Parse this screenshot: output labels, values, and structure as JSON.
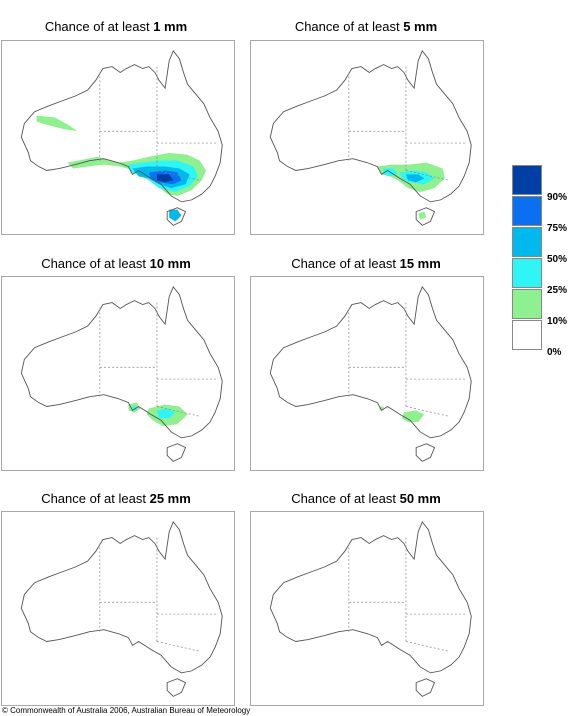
{
  "panels": [
    {
      "prefix": "Chance of at least ",
      "amount": "1 mm",
      "level": "1mm"
    },
    {
      "prefix": "Chance of at least ",
      "amount": "5 mm",
      "level": "5mm"
    },
    {
      "prefix": "Chance of at least ",
      "amount": "10 mm",
      "level": "10mm"
    },
    {
      "prefix": "Chance of at least ",
      "amount": "15 mm",
      "level": "15mm"
    },
    {
      "prefix": "Chance of at least ",
      "amount": "25 mm",
      "level": "25mm"
    },
    {
      "prefix": "Chance of at least ",
      "amount": "50 mm",
      "level": "50mm"
    }
  ],
  "legend": {
    "labels": [
      "90%",
      "75%",
      "50%",
      "25%",
      "10%",
      "0%"
    ],
    "colors": [
      "#003fa3",
      "#0a6ff0",
      "#00b9ec",
      "#2ff5f5",
      "#8ef08e",
      "#ffffff"
    ]
  },
  "footer": "© Commonwealth of Australia 2006, Australian Bureau of Meteorology"
}
